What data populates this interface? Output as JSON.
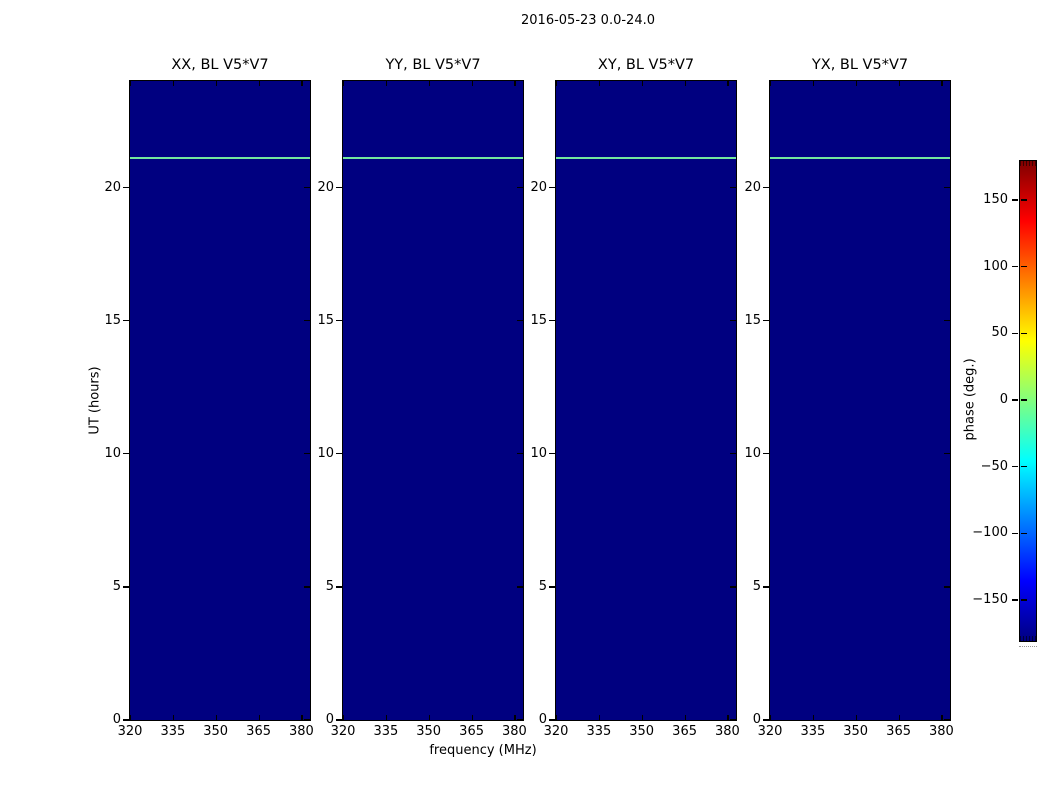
{
  "chart_data": {
    "type": "heatmap",
    "title": "2016-05-23 0.0-24.0",
    "xlabel": "frequency (MHz)",
    "ylabel": "UT (hours)",
    "xlim": [
      320,
      383
    ],
    "ylim": [
      0,
      24
    ],
    "x_ticks": [
      320,
      335,
      350,
      365,
      380
    ],
    "y_ticks": [
      0,
      5,
      10,
      15,
      20
    ],
    "grid": false,
    "colormap": "jet",
    "colorbar": {
      "label": "phase (deg.)",
      "ticks": [
        150,
        100,
        50,
        0,
        -50,
        -100,
        -150
      ],
      "range": [
        -180,
        180
      ],
      "position": "right"
    },
    "panels": [
      {
        "title": "XX, BL V5*V7",
        "background_phase_deg": -180,
        "feature": {
          "type": "horizontal-line",
          "ut_hours": 21.1,
          "phase_deg": 0
        }
      },
      {
        "title": "YY, BL V5*V7",
        "background_phase_deg": -180,
        "feature": {
          "type": "horizontal-line",
          "ut_hours": 21.1,
          "phase_deg": 0
        }
      },
      {
        "title": "XY, BL V5*V7",
        "background_phase_deg": -180,
        "feature": {
          "type": "horizontal-line",
          "ut_hours": 21.1,
          "phase_deg": 0
        }
      },
      {
        "title": "YX, BL V5*V7",
        "background_phase_deg": -180,
        "feature": {
          "type": "horizontal-line",
          "ut_hours": 21.1,
          "phase_deg": 0
        }
      }
    ]
  },
  "colors": {
    "panel_background": "#000080",
    "feature_line": "#73E69E",
    "frame": "#000000",
    "jet_gradient_top_to_bottom": [
      "#800000 0%",
      "#ff0000 12.5%",
      "#ffff00 37.5%",
      "#80ff80 50%",
      "#00ffff 62.5%",
      "#0000ff 87.5%",
      "#000080 100%"
    ]
  }
}
